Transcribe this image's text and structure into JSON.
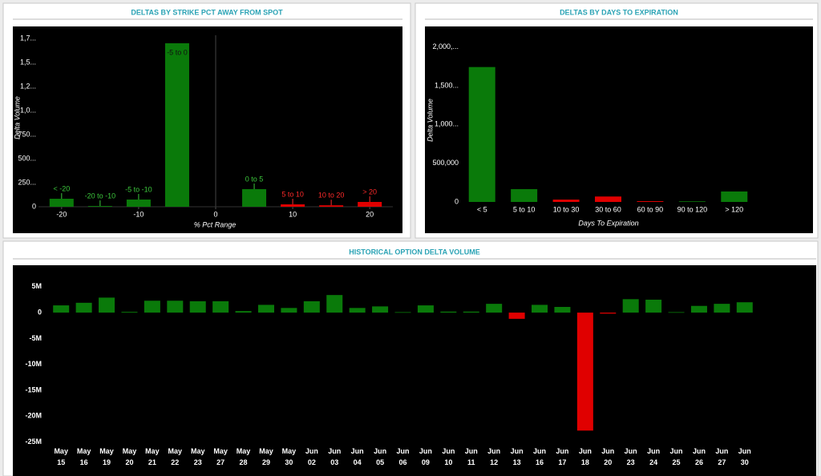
{
  "chart_data": [
    {
      "type": "bar",
      "title": "DELTAS BY STRIKE PCT AWAY FROM SPOT",
      "x_label": "% Pct Range",
      "y_label": "Delta Volume",
      "x": [
        -20,
        -15,
        -10,
        -5,
        5,
        10,
        15,
        20
      ],
      "values": [
        83000,
        8000,
        75000,
        1700000,
        183000,
        25000,
        15000,
        50000
      ],
      "point_labels": [
        "< -20",
        "-20 to -10",
        "-5 to -10",
        "-5 to 0",
        "0 to 5",
        "5 to 10",
        "10 to 20",
        "> 20"
      ],
      "colors": [
        "#0a7a0a",
        "#0a7a0a",
        "#0a7a0a",
        "#0a7a0a",
        "#0a7a0a",
        "#e00000",
        "#e00000",
        "#e00000"
      ],
      "xlim": [
        -23,
        23
      ],
      "xticks": [
        -20,
        -10,
        0,
        10,
        20
      ],
      "ylim": [
        0,
        1850000
      ],
      "yticks": [
        0,
        {
          "value": 250000,
          "label": "250..."
        },
        {
          "value": 500000,
          "label": "500..."
        },
        {
          "value": 750000,
          "label": "750..."
        },
        {
          "value": 1000000,
          "label": "1,0..."
        },
        {
          "value": 1250000,
          "label": "1,2..."
        },
        {
          "value": 1500000,
          "label": "1,5..."
        },
        {
          "value": 1750000,
          "label": "1,7..."
        }
      ]
    },
    {
      "type": "bar",
      "title": "DELTAS BY DAYS TO EXPIRATION",
      "x_label": "Days To Expiration",
      "y_label": "Delta Volume",
      "categories": [
        "< 5",
        "5 to 10",
        "10 to 30",
        "30 to 60",
        "60 to 90",
        "90 to 120",
        "> 120"
      ],
      "values": [
        1740000,
        165000,
        30000,
        70000,
        10000,
        8000,
        135000
      ],
      "colors": [
        "#0a7a0a",
        "#0a7a0a",
        "#e00000",
        "#e00000",
        "#e00000",
        "#0a7a0a",
        "#0a7a0a"
      ],
      "ylim": [
        0,
        2150000
      ],
      "yticks": [
        0,
        {
          "value": 500000,
          "label": "500,000"
        },
        {
          "value": 1000000,
          "label": "1,000..."
        },
        {
          "value": 1500000,
          "label": "1,500..."
        },
        {
          "value": 2000000,
          "label": "2,000,..."
        }
      ]
    },
    {
      "type": "bar",
      "title": "HISTORICAL OPTION DELTA VOLUME",
      "categories": [
        [
          "May",
          "15"
        ],
        [
          "May",
          "16"
        ],
        [
          "May",
          "19"
        ],
        [
          "May",
          "20"
        ],
        [
          "May",
          "21"
        ],
        [
          "May",
          "22"
        ],
        [
          "May",
          "23"
        ],
        [
          "May",
          "27"
        ],
        [
          "May",
          "28"
        ],
        [
          "May",
          "29"
        ],
        [
          "May",
          "30"
        ],
        [
          "Jun",
          "02"
        ],
        [
          "Jun",
          "03"
        ],
        [
          "Jun",
          "04"
        ],
        [
          "Jun",
          "05"
        ],
        [
          "Jun",
          "06"
        ],
        [
          "Jun",
          "09"
        ],
        [
          "Jun",
          "10"
        ],
        [
          "Jun",
          "11"
        ],
        [
          "Jun",
          "12"
        ],
        [
          "Jun",
          "13"
        ],
        [
          "Jun",
          "16"
        ],
        [
          "Jun",
          "17"
        ],
        [
          "Jun",
          "18"
        ],
        [
          "Jun",
          "20"
        ],
        [
          "Jun",
          "23"
        ],
        [
          "Jun",
          "24"
        ],
        [
          "Jun",
          "25"
        ],
        [
          "Jun",
          "26"
        ],
        [
          "Jun",
          "27"
        ],
        [
          "Jun",
          "30"
        ]
      ],
      "values": [
        1400000,
        1900000,
        2900000,
        150000,
        2300000,
        2300000,
        2200000,
        2200000,
        300000,
        1500000,
        900000,
        2200000,
        3400000,
        900000,
        1200000,
        100000,
        1400000,
        200000,
        200000,
        1700000,
        -1200000,
        1500000,
        1100000,
        -22800000,
        -200000,
        2600000,
        2500000,
        100000,
        1300000,
        1700000,
        2000000
      ],
      "color": "#0a7a0a",
      "negative_color": "#e00000",
      "ylim": [
        -26000000,
        9000000
      ],
      "yticks": [
        {
          "value": 5000000,
          "label": "5M"
        },
        0,
        {
          "value": -5000000,
          "label": "-5M"
        },
        {
          "value": -10000000,
          "label": "-10M"
        },
        {
          "value": -15000000,
          "label": "-15M"
        },
        {
          "value": -20000000,
          "label": "-20M"
        },
        {
          "value": -25000000,
          "label": "-25M"
        }
      ]
    }
  ]
}
